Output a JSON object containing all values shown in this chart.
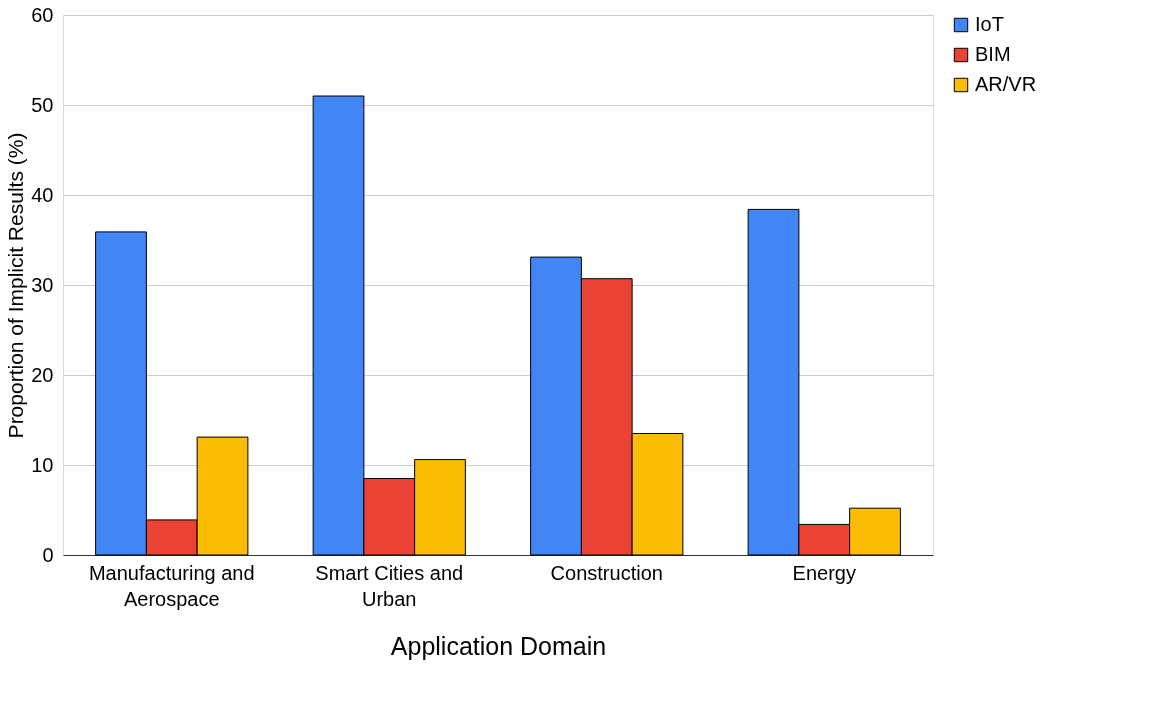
{
  "chart_data": {
    "type": "bar",
    "xlabel": "Application Domain",
    "ylabel": "Proportion of Implicit Results (%)",
    "categories": [
      "Manufacturing and Aerospace",
      "Smart Cities and Urban",
      "Construction",
      "Energy"
    ],
    "series": [
      {
        "name": "IoT",
        "color": "#4285f4",
        "values": [
          35.9,
          51.0,
          33.1,
          38.4
        ]
      },
      {
        "name": "BIM",
        "color": "#ea4335",
        "values": [
          3.9,
          8.5,
          30.7,
          3.4
        ]
      },
      {
        "name": "AR/VR",
        "color": "#fbbc04",
        "values": [
          13.1,
          10.6,
          13.5,
          5.2
        ]
      }
    ],
    "ylim": [
      0,
      60
    ],
    "yticks": [
      0,
      10,
      20,
      30,
      40,
      50,
      60
    ],
    "grid": "y",
    "legend": "right"
  }
}
